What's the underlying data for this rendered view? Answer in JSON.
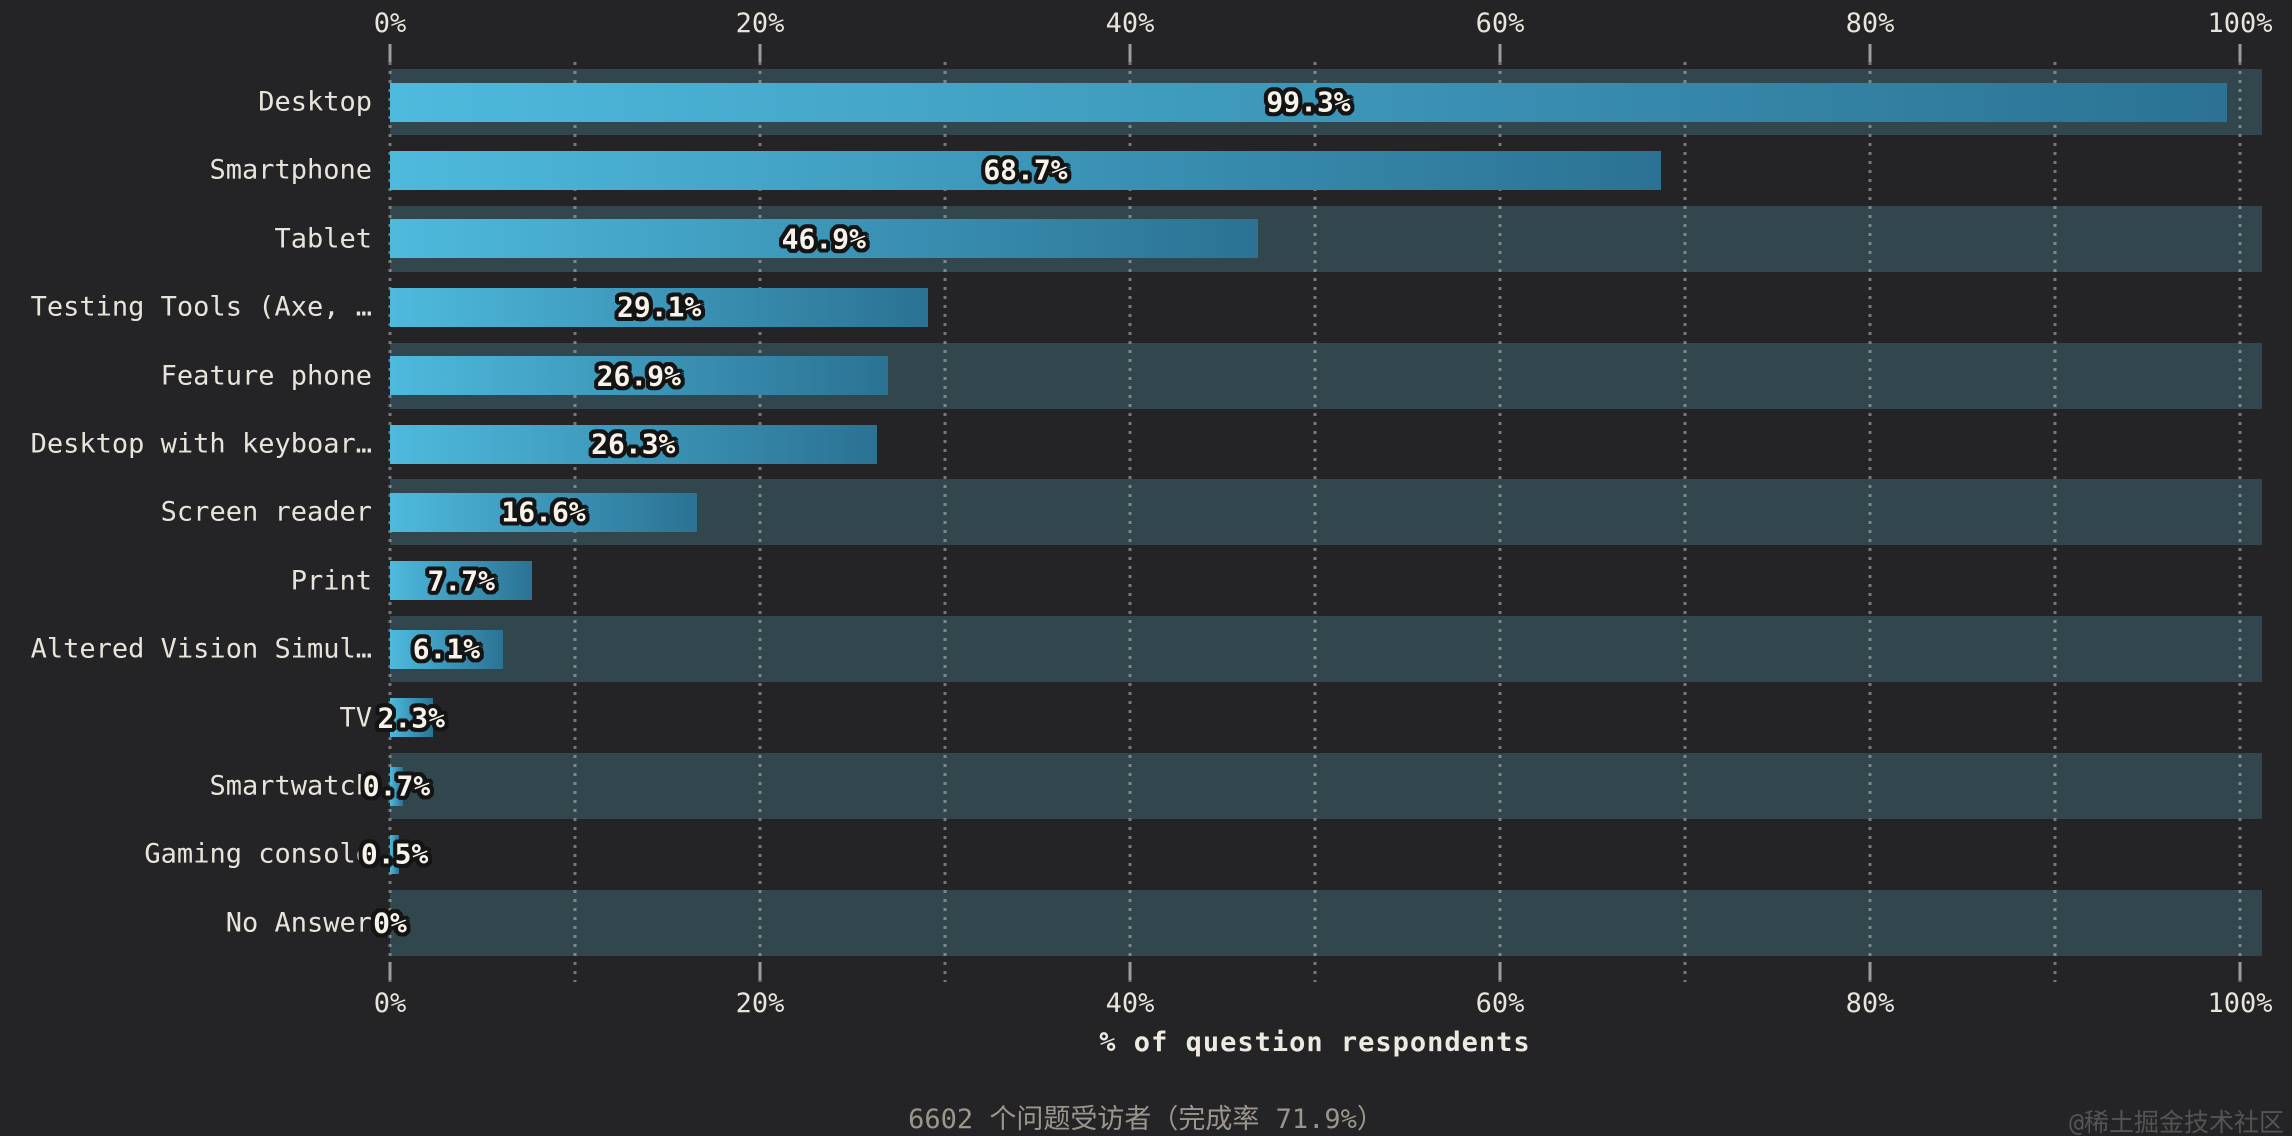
{
  "chart_data": {
    "type": "bar",
    "orientation": "horizontal",
    "title": "",
    "xlabel": "% of question respondents",
    "ylabel": "",
    "xlim": [
      0,
      100
    ],
    "grid": "dotted vertical lines every 10%",
    "x_ticks": [
      {
        "value": 0,
        "label": "0%"
      },
      {
        "value": 20,
        "label": "20%"
      },
      {
        "value": 40,
        "label": "40%"
      },
      {
        "value": 60,
        "label": "60%"
      },
      {
        "value": 80,
        "label": "80%"
      },
      {
        "value": 100,
        "label": "100%"
      }
    ],
    "categories": [
      "Desktop",
      "Smartphone",
      "Tablet",
      "Testing Tools (Axe, …",
      "Feature phone",
      "Desktop with keyboar…",
      "Screen reader",
      "Print",
      "Altered Vision Simul…",
      "TV",
      "Smartwatch",
      "Gaming console",
      "No Answer"
    ],
    "values": [
      99.3,
      68.7,
      46.9,
      29.1,
      26.9,
      26.3,
      16.6,
      7.7,
      6.1,
      2.3,
      0.7,
      0.5,
      0
    ],
    "value_labels": [
      "99.3%",
      "68.7%",
      "46.9%",
      "29.1%",
      "26.9%",
      "26.3%",
      "16.6%",
      "7.7%",
      "6.1%",
      "2.3%",
      "0.7%",
      "0.5%",
      "0%"
    ]
  },
  "colors": {
    "background": "#242426",
    "row_band": "#31474d",
    "bar_gradient_start": "#4ebadd",
    "bar_gradient_end": "#2b7294",
    "value_text": "#f7f3ea",
    "value_outline": "#141414",
    "axis_text": "#e9e4db",
    "grid_dots": "#bebebe",
    "tick_mark": "#9c9c9c",
    "footer_text": "#9b958c",
    "watermark_text": "#545454"
  },
  "footer": {
    "note": "6602 个问题受访者（完成率 71.9%）",
    "watermark": "@稀土掘金技术社区"
  }
}
